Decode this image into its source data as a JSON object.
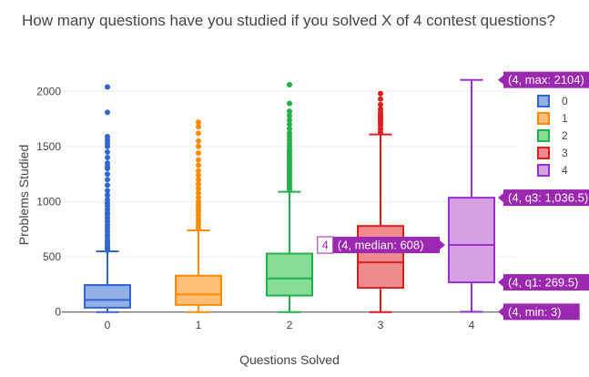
{
  "chart_data": {
    "type": "box",
    "title": "How many questions have you studied if you solved X of 4 contest questions?",
    "xlabel": "Questions Solved",
    "ylabel": "Problems Studied",
    "categories": [
      "0",
      "1",
      "2",
      "3",
      "4"
    ],
    "ylim": [
      -60,
      2250
    ],
    "y_ticks": [
      0,
      500,
      1000,
      1500,
      2000
    ],
    "y_tick_labels": [
      "0",
      "500",
      "1000",
      "1500",
      "2000"
    ],
    "grid": true,
    "legend_position": "top-right",
    "series": [
      {
        "name": "0",
        "color": "#3366cc",
        "fill": "#93b0e4",
        "min": 0,
        "q1": 40,
        "median": 110,
        "q3": 245,
        "upper_fence": 550,
        "outliers": [
          560,
          575,
          590,
          610,
          630,
          650,
          680,
          700,
          730,
          760,
          790,
          820,
          850,
          880,
          900,
          930,
          960,
          990,
          1020,
          1060,
          1100,
          1150,
          1200,
          1250,
          1300,
          1320,
          1350,
          1400,
          1450,
          1500,
          1530,
          1560,
          1590,
          1810,
          2040
        ]
      },
      {
        "name": "1",
        "color": "#ff8c00",
        "fill": "#ffbe78",
        "min": 0,
        "q1": 65,
        "median": 160,
        "q3": 330,
        "upper_fence": 740,
        "outliers": [
          760,
          790,
          820,
          850,
          880,
          910,
          940,
          970,
          1000,
          1040,
          1080,
          1120,
          1160,
          1200,
          1240,
          1280,
          1330,
          1380,
          1440,
          1500,
          1550,
          1620,
          1680,
          1720
        ]
      },
      {
        "name": "2",
        "color": "#22b14c",
        "fill": "#87dd96",
        "min": 0,
        "q1": 150,
        "median": 305,
        "q3": 530,
        "upper_fence": 1090,
        "outliers": [
          1110,
          1130,
          1150,
          1170,
          1190,
          1210,
          1230,
          1250,
          1270,
          1290,
          1310,
          1330,
          1350,
          1370,
          1390,
          1410,
          1430,
          1450,
          1470,
          1500,
          1530,
          1560,
          1590,
          1620,
          1660,
          1700,
          1740,
          1780,
          1820,
          1890,
          2060
        ]
      },
      {
        "name": "3",
        "color": "#dc1e1e",
        "fill": "#ef8a8f",
        "min": 0,
        "q1": 220,
        "median": 450,
        "q3": 780,
        "upper_fence": 1610,
        "outliers": [
          1630,
          1660,
          1690,
          1710,
          1730,
          1750,
          1770,
          1790,
          1810,
          1840,
          1880,
          1930,
          1980
        ]
      },
      {
        "name": "4",
        "color": "#9932cc",
        "fill": "#d5a1e2",
        "min": 3,
        "q1": 269.5,
        "median": 608,
        "q3": 1036.5,
        "upper_fence": 2104,
        "outliers": []
      }
    ],
    "hover": {
      "label_color": "#9c27b0",
      "median_category_label": "4",
      "labels": [
        {
          "text": "(4, max: 2104)",
          "value": 2104,
          "side": "right"
        },
        {
          "text": "(4, q3: 1,036.5)",
          "value": 1036.5,
          "side": "right"
        },
        {
          "text": "(4, median: 608)",
          "value": 608,
          "side": "left"
        },
        {
          "text": "(4, q1: 269.5)",
          "value": 269.5,
          "side": "right"
        },
        {
          "text": "(4, min: 3)",
          "value": 3,
          "side": "right"
        }
      ]
    }
  }
}
